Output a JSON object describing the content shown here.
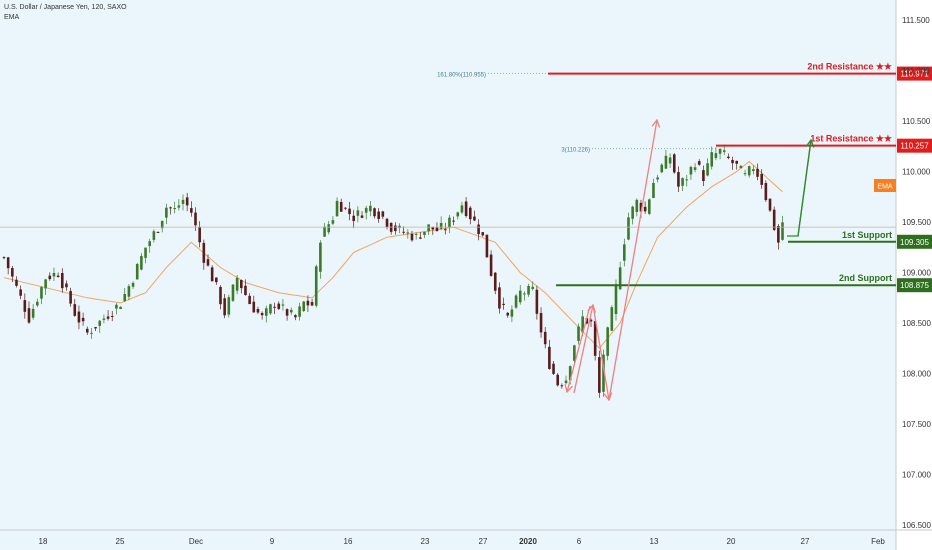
{
  "header": {
    "symbol_line": "U.S. Dollar / Japanese Yen, 120, SAXO",
    "indicator": "EMA"
  },
  "chart_data": {
    "type": "candlestick",
    "y_axis": {
      "ticks": [
        "111.500",
        "111.000",
        "110.500",
        "110.000",
        "109.500",
        "109.000",
        "108.500",
        "108.000",
        "107.500",
        "107.000",
        "106.500"
      ],
      "ylim": [
        106.45,
        111.7
      ]
    },
    "x_axis": {
      "ticks": [
        "18",
        "25",
        "Dec",
        "9",
        "16",
        "23",
        "27",
        "2020",
        "6",
        "13",
        "20",
        "27",
        "Feb"
      ]
    },
    "price_path": [
      [
        109.15,
        0
      ],
      [
        108.85,
        3
      ],
      [
        108.55,
        6
      ],
      [
        108.95,
        10
      ],
      [
        109.0,
        13
      ],
      [
        108.6,
        17
      ],
      [
        108.4,
        20
      ],
      [
        108.55,
        24
      ],
      [
        108.7,
        28
      ],
      [
        108.95,
        31
      ],
      [
        109.25,
        34
      ],
      [
        109.45,
        37
      ],
      [
        109.65,
        39
      ],
      [
        109.62,
        41
      ],
      [
        109.72,
        43
      ],
      [
        109.6,
        45
      ],
      [
        109.15,
        48
      ],
      [
        108.85,
        51
      ],
      [
        108.6,
        53
      ],
      [
        108.95,
        56
      ],
      [
        108.7,
        59
      ],
      [
        108.55,
        62
      ],
      [
        108.7,
        65
      ],
      [
        108.6,
        68
      ],
      [
        108.55,
        70
      ],
      [
        108.7,
        72
      ],
      [
        108.68,
        74
      ],
      [
        109.35,
        76
      ],
      [
        109.55,
        79
      ],
      [
        109.7,
        80
      ],
      [
        109.55,
        84
      ],
      [
        109.65,
        88
      ],
      [
        109.55,
        91
      ],
      [
        109.45,
        93
      ],
      [
        109.4,
        96
      ],
      [
        109.35,
        99
      ],
      [
        109.45,
        102
      ],
      [
        109.42,
        104
      ],
      [
        109.45,
        106
      ],
      [
        109.55,
        108
      ],
      [
        109.68,
        110
      ],
      [
        109.5,
        113
      ],
      [
        109.35,
        115
      ],
      [
        109.0,
        117
      ],
      [
        108.7,
        119
      ],
      [
        108.55,
        121
      ],
      [
        108.8,
        124
      ],
      [
        108.82,
        127
      ],
      [
        108.4,
        129
      ],
      [
        108.1,
        131
      ],
      [
        107.9,
        133
      ],
      [
        107.95,
        135
      ],
      [
        108.3,
        137
      ],
      [
        108.55,
        139
      ],
      [
        108.5,
        141
      ],
      [
        107.8,
        143
      ],
      [
        108.2,
        144
      ],
      [
        108.6,
        146
      ],
      [
        109.1,
        148
      ],
      [
        109.55,
        150
      ],
      [
        109.7,
        152
      ],
      [
        109.6,
        154
      ],
      [
        109.9,
        156
      ],
      [
        110.05,
        158
      ],
      [
        110.15,
        160
      ],
      [
        109.85,
        162
      ],
      [
        109.95,
        164
      ],
      [
        110.1,
        166
      ],
      [
        109.95,
        168
      ],
      [
        110.15,
        170
      ],
      [
        110.2,
        172
      ],
      [
        110.12,
        174
      ],
      [
        110.05,
        176
      ],
      [
        109.95,
        178
      ],
      [
        110.05,
        180
      ],
      [
        109.9,
        182
      ],
      [
        109.75,
        183
      ],
      [
        109.45,
        185
      ],
      [
        109.3,
        186
      ],
      [
        109.5,
        187
      ]
    ],
    "ema_path": [
      [
        108.95,
        0
      ],
      [
        108.85,
        10
      ],
      [
        108.75,
        20
      ],
      [
        108.7,
        28
      ],
      [
        108.8,
        34
      ],
      [
        109.05,
        39
      ],
      [
        109.3,
        45
      ],
      [
        109.05,
        52
      ],
      [
        108.9,
        58
      ],
      [
        108.8,
        66
      ],
      [
        108.75,
        74
      ],
      [
        108.95,
        79
      ],
      [
        109.2,
        84
      ],
      [
        109.35,
        92
      ],
      [
        109.4,
        100
      ],
      [
        109.45,
        108
      ],
      [
        109.3,
        118
      ],
      [
        109.0,
        124
      ],
      [
        108.8,
        130
      ],
      [
        108.5,
        137
      ],
      [
        108.25,
        143
      ],
      [
        108.5,
        148
      ],
      [
        108.9,
        152
      ],
      [
        109.35,
        157
      ],
      [
        109.65,
        164
      ],
      [
        109.85,
        170
      ],
      [
        110.0,
        176
      ],
      [
        110.1,
        179
      ],
      [
        109.95,
        183
      ],
      [
        109.8,
        187
      ]
    ],
    "levels": [
      {
        "name": "2nd Resistance ★★",
        "price": 110.971,
        "label": "110.971",
        "color": "#e01c1c"
      },
      {
        "name": "1st Resistance ★★",
        "price": 110.257,
        "label": "110.257",
        "color": "#e01c1c"
      },
      {
        "name": "1st Support",
        "price": 109.305,
        "label": "109.305",
        "color": "#2e6f1d"
      },
      {
        "name": "2nd Support",
        "price": 108.875,
        "label": "108.875",
        "color": "#2e6f1d"
      }
    ],
    "fib_labels": [
      "161.80%(110.955)",
      "3(110.226)"
    ],
    "current_price": 109.45,
    "ema_badge": "EMA",
    "colors": {
      "up": "#3b7a2a",
      "down": "#5a1b1b",
      "ema": "#f4a460",
      "arrow_red": "#f08080",
      "arrow_green": "#2e8b2e"
    }
  }
}
